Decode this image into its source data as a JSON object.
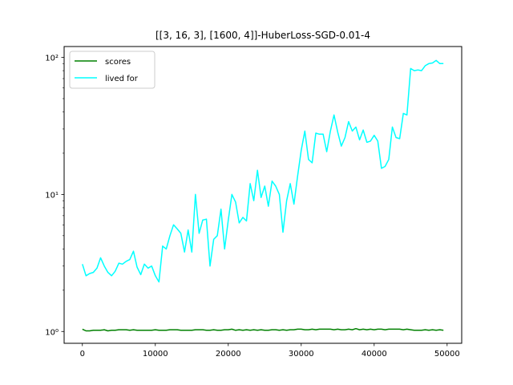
{
  "chart_data": {
    "type": "line",
    "title": "[[3, 16, 3], [1600, 4]]-HuberLoss-SGD-0.01-4",
    "xlabel": "",
    "ylabel": "",
    "xlim": [
      -2500,
      52000
    ],
    "ylim": [
      0.82,
      120
    ],
    "yscale": "log",
    "grid": false,
    "legend": "top-left",
    "x_ticks": [
      0,
      10000,
      20000,
      30000,
      40000,
      50000
    ],
    "x_tick_labels": [
      "0",
      "10000",
      "20000",
      "30000",
      "40000",
      "50000"
    ],
    "y_ticks": [
      1,
      10,
      100
    ],
    "y_tick_labels": [
      "10⁰",
      "10¹",
      "10²"
    ],
    "series": [
      {
        "name": "scores",
        "color": "#008000",
        "x": [
          0,
          500,
          1000,
          1500,
          2000,
          2500,
          3000,
          3500,
          4000,
          4500,
          5000,
          5500,
          6000,
          6500,
          7000,
          7500,
          8000,
          8500,
          9000,
          9500,
          10000,
          10500,
          11000,
          11500,
          12000,
          12500,
          13000,
          13500,
          14000,
          14500,
          15000,
          15500,
          16000,
          16500,
          17000,
          17500,
          18000,
          18500,
          19000,
          19500,
          20000,
          20500,
          21000,
          21500,
          22000,
          22500,
          23000,
          23500,
          24000,
          24500,
          25000,
          25500,
          26000,
          26500,
          27000,
          27500,
          28000,
          28500,
          29000,
          29500,
          30000,
          30500,
          31000,
          31500,
          32000,
          32500,
          33000,
          33500,
          34000,
          34500,
          35000,
          35500,
          36000,
          36500,
          37000,
          37500,
          38000,
          38500,
          39000,
          39500,
          40000,
          40500,
          41000,
          41500,
          42000,
          42500,
          43000,
          43500,
          44000,
          44500,
          45000,
          45500,
          46000,
          46500,
          47000,
          47500,
          48000,
          48500,
          49000,
          49500
        ],
        "values": [
          1.04,
          1.01,
          1.01,
          1.02,
          1.02,
          1.02,
          1.03,
          1.01,
          1.02,
          1.02,
          1.03,
          1.03,
          1.03,
          1.02,
          1.03,
          1.02,
          1.02,
          1.02,
          1.02,
          1.02,
          1.03,
          1.02,
          1.02,
          1.02,
          1.03,
          1.03,
          1.03,
          1.02,
          1.02,
          1.02,
          1.02,
          1.03,
          1.03,
          1.03,
          1.02,
          1.02,
          1.03,
          1.02,
          1.02,
          1.03,
          1.03,
          1.04,
          1.02,
          1.03,
          1.02,
          1.03,
          1.02,
          1.03,
          1.02,
          1.03,
          1.02,
          1.02,
          1.03,
          1.03,
          1.02,
          1.03,
          1.02,
          1.03,
          1.03,
          1.04,
          1.04,
          1.03,
          1.03,
          1.04,
          1.03,
          1.04,
          1.04,
          1.04,
          1.04,
          1.03,
          1.04,
          1.03,
          1.03,
          1.04,
          1.03,
          1.05,
          1.03,
          1.04,
          1.03,
          1.04,
          1.03,
          1.04,
          1.04,
          1.03,
          1.04,
          1.04,
          1.04,
          1.04,
          1.03,
          1.04,
          1.03,
          1.02,
          1.02,
          1.02,
          1.03,
          1.02,
          1.03,
          1.02,
          1.03,
          1.02
        ]
      },
      {
        "name": "lived for",
        "color": "#00ffff",
        "x": [
          0,
          500,
          1000,
          1500,
          2000,
          2500,
          3000,
          3500,
          4000,
          4500,
          5000,
          5500,
          6000,
          6500,
          7000,
          7500,
          8000,
          8500,
          9000,
          9500,
          10000,
          10500,
          11000,
          11500,
          12000,
          12500,
          13000,
          13500,
          14000,
          14500,
          15000,
          15500,
          16000,
          16500,
          17000,
          17500,
          18000,
          18500,
          19000,
          19500,
          20000,
          20500,
          21000,
          21500,
          22000,
          22500,
          23000,
          23500,
          24000,
          24500,
          25000,
          25500,
          26000,
          26500,
          27000,
          27500,
          28000,
          28500,
          29000,
          29500,
          30000,
          30500,
          31000,
          31500,
          32000,
          32500,
          33000,
          33500,
          34000,
          34500,
          35000,
          35500,
          36000,
          36500,
          37000,
          37500,
          38000,
          38500,
          39000,
          39500,
          40000,
          40500,
          41000,
          41500,
          42000,
          42500,
          43000,
          43500,
          44000,
          44500,
          45000,
          45500,
          46000,
          46500,
          47000,
          47500,
          48000,
          48500,
          49000,
          49500
        ],
        "values": [
          3.1,
          2.55,
          2.65,
          2.7,
          2.9,
          3.45,
          3.0,
          2.7,
          2.55,
          2.75,
          3.15,
          3.1,
          3.25,
          3.35,
          3.85,
          2.95,
          2.6,
          3.1,
          2.9,
          3.0,
          2.55,
          2.3,
          4.2,
          4.0,
          5.0,
          6.0,
          5.6,
          5.2,
          3.8,
          5.5,
          3.8,
          10.0,
          5.2,
          6.5,
          6.6,
          3.0,
          4.7,
          5.0,
          7.8,
          4.0,
          6.5,
          10.0,
          8.8,
          6.2,
          6.8,
          6.4,
          12.0,
          9.0,
          15.0,
          9.5,
          11.5,
          8.2,
          12.5,
          11.5,
          10.0,
          5.3,
          9.0,
          12.0,
          8.5,
          13.5,
          21.0,
          29.0,
          18.0,
          17.0,
          28.0,
          27.5,
          27.5,
          20.5,
          29.0,
          38.0,
          28.5,
          22.5,
          26.0,
          34.0,
          29.0,
          31.0,
          25.0,
          29.5,
          24.0,
          24.5,
          27.0,
          24.5,
          15.5,
          16.0,
          18.0,
          31.0,
          26.0,
          25.5,
          39.0,
          38.0,
          83.0,
          80.0,
          81.0,
          80.0,
          87.0,
          90.0,
          91.0,
          95.0,
          90.0,
          90.0
        ]
      }
    ]
  }
}
